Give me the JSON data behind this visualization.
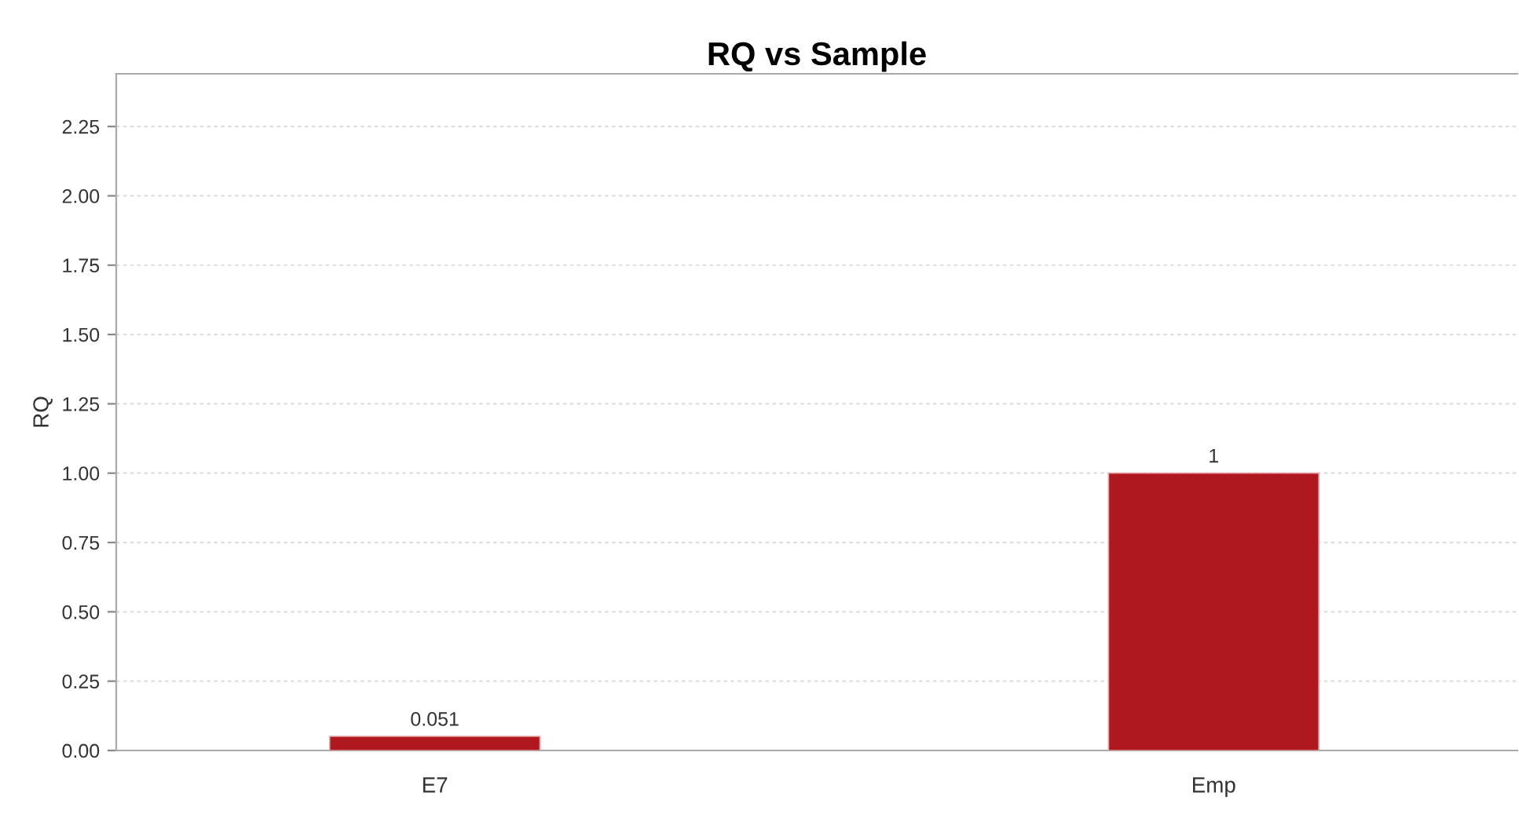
{
  "chart_data": {
    "type": "bar",
    "title": "RQ vs Sample",
    "ylabel": "RQ",
    "categories": [
      "E7",
      "Emp"
    ],
    "values": [
      0.051,
      1
    ],
    "color": "#b01820",
    "ylim": [
      0,
      2.44
    ],
    "yticks": [
      {
        "value": 0,
        "label": "0.00"
      },
      {
        "value": 0.25,
        "label": "0.25"
      },
      {
        "value": 0.5,
        "label": "0.50"
      },
      {
        "value": 0.75,
        "label": "0.75"
      },
      {
        "value": 1,
        "label": "1.00"
      },
      {
        "value": 1.25,
        "label": "1.25"
      },
      {
        "value": 1.5,
        "label": "1.50"
      },
      {
        "value": 1.75,
        "label": "1.75"
      },
      {
        "value": 2,
        "label": "2.00"
      },
      {
        "value": 2.25,
        "label": "2.25"
      }
    ],
    "value_labels": [
      "0.051",
      "1"
    ],
    "grid": "y"
  }
}
